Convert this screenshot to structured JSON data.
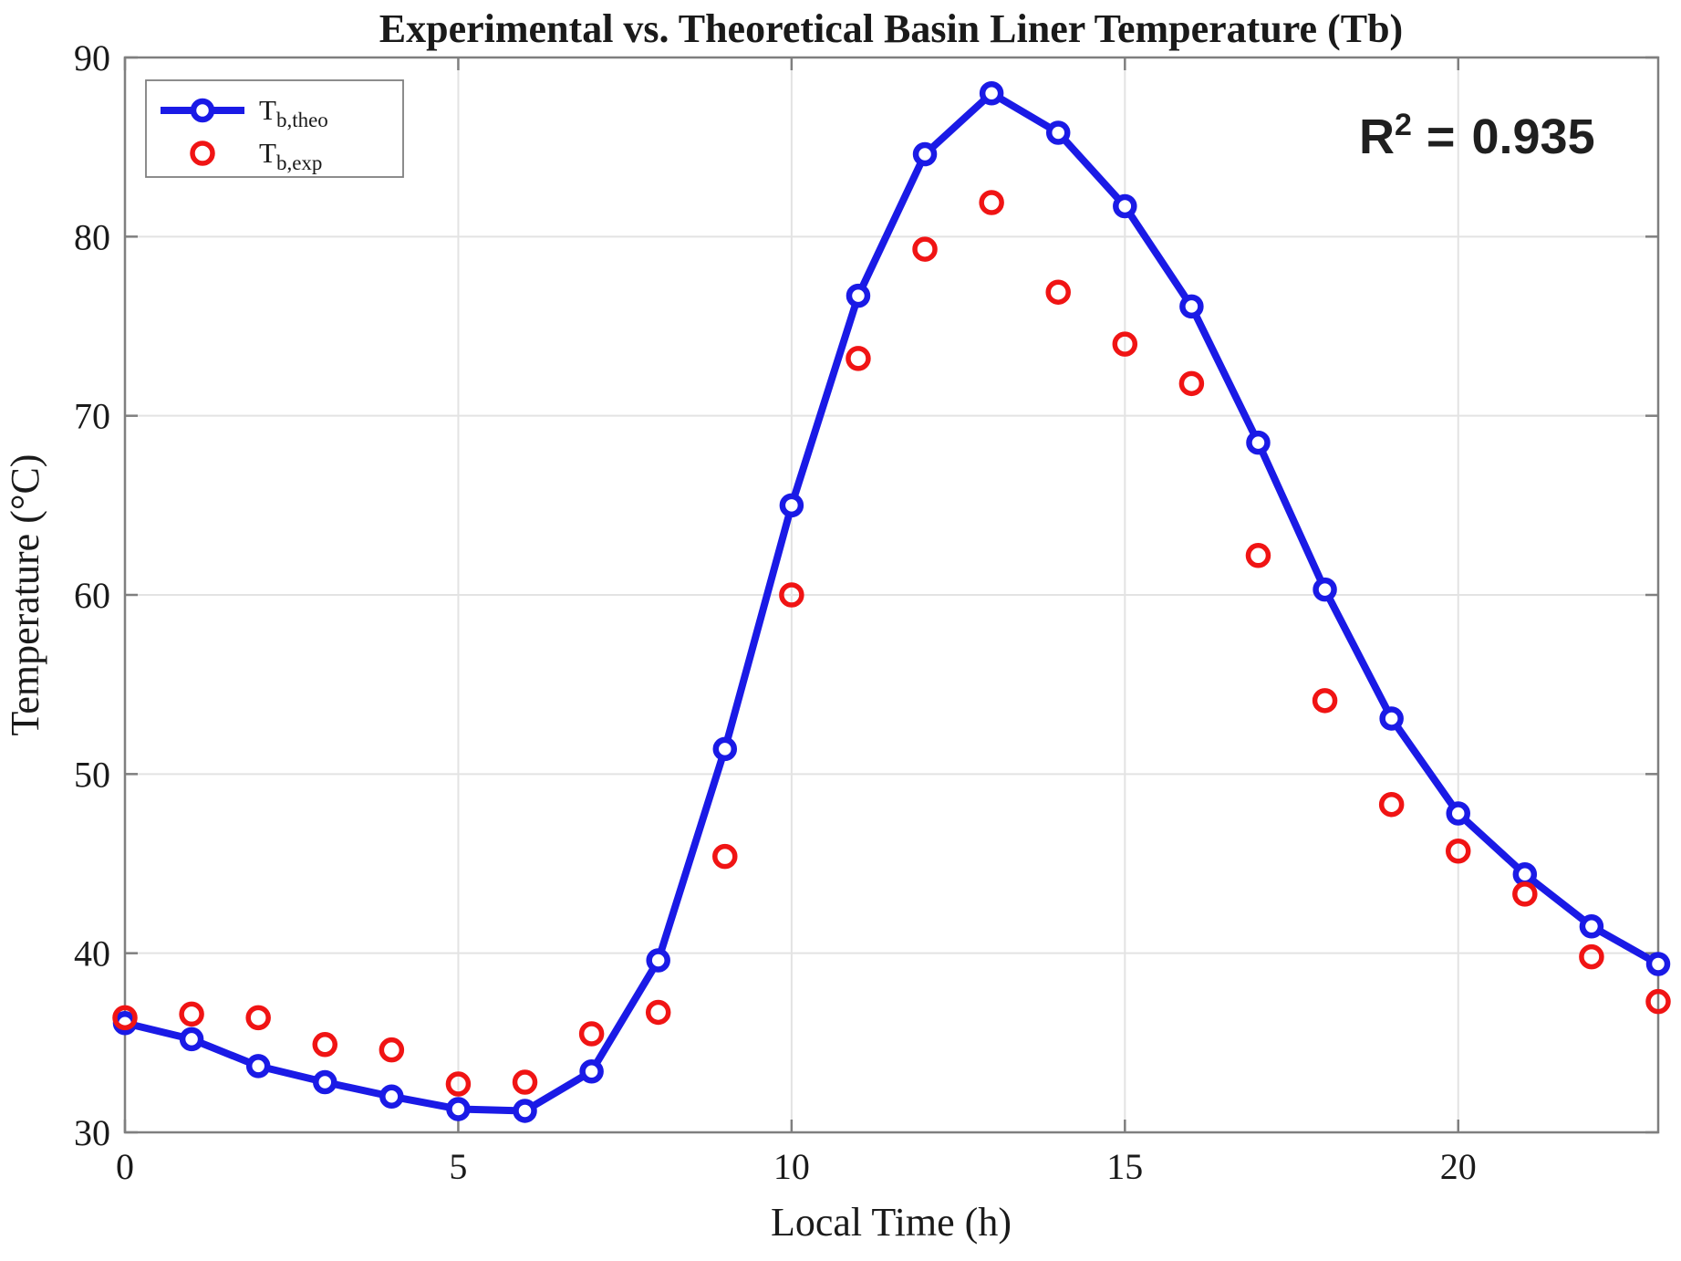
{
  "chart_data": {
    "type": "line",
    "title": "Experimental vs. Theoretical Basin Liner Temperature (Tb)",
    "xlabel": "Local Time (h)",
    "ylabel": "Temperature (°C)",
    "xlim": [
      0,
      23
    ],
    "ylim": [
      30,
      90
    ],
    "xticks": [
      0,
      5,
      10,
      15,
      20
    ],
    "yticks": [
      30,
      40,
      50,
      60,
      70,
      80,
      90
    ],
    "grid": true,
    "legend_position": "top-left",
    "x": [
      0,
      1,
      2,
      3,
      4,
      5,
      6,
      7,
      8,
      9,
      10,
      11,
      12,
      13,
      14,
      15,
      16,
      17,
      18,
      19,
      20,
      21,
      22,
      23
    ],
    "series": [
      {
        "name": "T_b,theo",
        "style": "line+markers",
        "color": "#1a1ae6",
        "marker": "open-circle",
        "values": [
          36.1,
          35.2,
          33.7,
          32.8,
          32.0,
          31.3,
          31.2,
          33.4,
          39.6,
          51.4,
          65.0,
          76.7,
          84.6,
          88.0,
          85.8,
          81.7,
          76.1,
          68.5,
          60.3,
          53.1,
          47.8,
          44.4,
          41.5,
          39.4
        ]
      },
      {
        "name": "T_b,exp",
        "style": "markers",
        "color": "#f01414",
        "marker": "open-circle",
        "values": [
          36.4,
          36.6,
          36.4,
          34.9,
          34.6,
          32.7,
          32.8,
          35.5,
          36.7,
          45.4,
          60.0,
          73.2,
          79.3,
          81.9,
          76.9,
          74.0,
          71.8,
          62.2,
          54.1,
          48.3,
          45.7,
          43.3,
          39.8,
          37.3
        ]
      }
    ],
    "annotation": "R² = 0.935"
  },
  "legend": {
    "items": [
      {
        "base": "T",
        "sub": "b,theo"
      },
      {
        "base": "T",
        "sub": "b,exp"
      }
    ]
  },
  "annotation": {
    "base": "R",
    "sup": "2",
    "eq": "=",
    "value": "0.935"
  },
  "colors": {
    "theoretical_line": "#1a1ae6",
    "experimental_marker": "#f01414",
    "axis": "#7f7f7f",
    "grid": "#e3e3e3",
    "text": "#1a1a1a",
    "background": "#ffffff"
  }
}
